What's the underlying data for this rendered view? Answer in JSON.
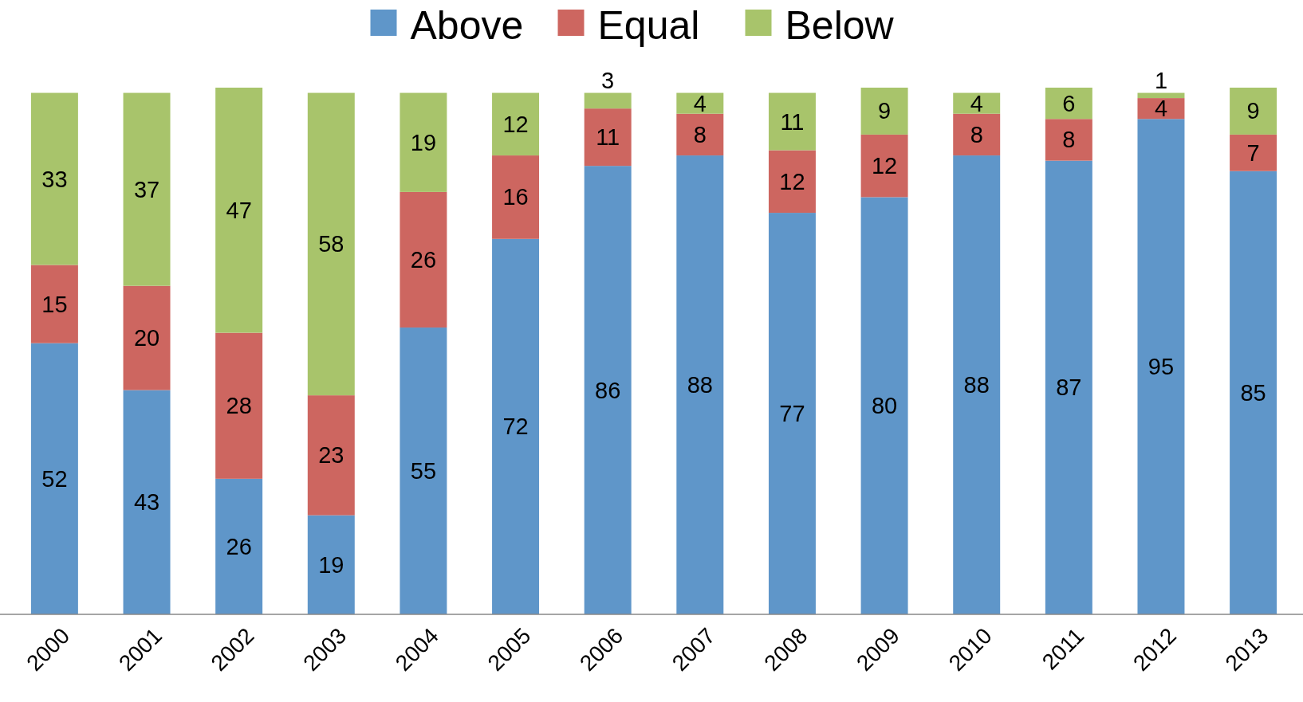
{
  "chart_data": {
    "type": "bar",
    "stacked": true,
    "data_labels": true,
    "legend": "top",
    "tick_labels": "x",
    "categories": [
      "2000",
      "2001",
      "2002",
      "2003",
      "2004",
      "2005",
      "2006",
      "2007",
      "2008",
      "2009",
      "2010",
      "2011",
      "2012",
      "2013"
    ],
    "ylim": [
      0,
      101
    ],
    "series": [
      {
        "name": "Above",
        "color": "#5f96c9",
        "values": [
          52,
          43,
          26,
          19,
          55,
          72,
          86,
          88,
          77,
          80,
          88,
          87,
          95,
          85
        ]
      },
      {
        "name": "Equal",
        "color": "#cd6660",
        "values": [
          15,
          20,
          28,
          23,
          26,
          16,
          11,
          8,
          12,
          12,
          8,
          8,
          4,
          7
        ]
      },
      {
        "name": "Below",
        "color": "#a8c46b",
        "values": [
          33,
          37,
          47,
          58,
          19,
          12,
          3,
          4,
          11,
          9,
          4,
          6,
          1,
          9
        ]
      }
    ]
  }
}
